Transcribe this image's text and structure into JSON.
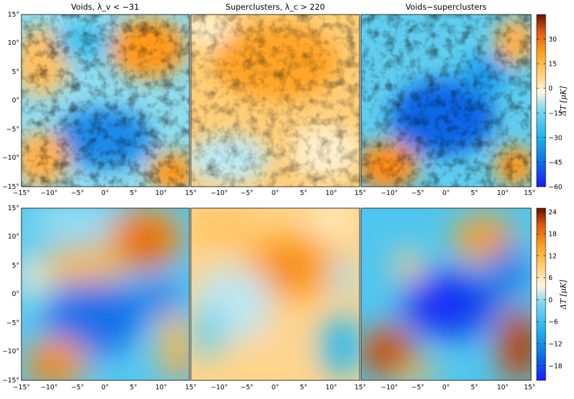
{
  "chart_data": [
    {
      "type": "heatmap",
      "row": "top",
      "panels": [
        {
          "title": "Voids, λ_v < −31",
          "field": "voids"
        },
        {
          "title": "Superclusters, λ_c > 220",
          "field": "superclusters"
        },
        {
          "title": "Voids−superclusters",
          "field": "difference"
        }
      ],
      "x_ticks": [
        "−15°",
        "−10°",
        "−5°",
        "0°",
        "5°",
        "10°",
        "15°"
      ],
      "y_ticks": [
        "15°",
        "10°",
        "5°",
        "0°",
        "−5°",
        "−10°",
        "−15°"
      ],
      "xlim": [
        -15,
        15
      ],
      "ylim": [
        -15,
        15
      ],
      "colorbar": {
        "label": "ΔT [μK]",
        "range": [
          -60,
          45
        ],
        "ticks": [
          "30",
          "15",
          "0",
          "−15",
          "−30",
          "−45",
          "−60"
        ],
        "tick_values": [
          30,
          15,
          0,
          -15,
          -30,
          -45,
          -60
        ]
      }
    },
    {
      "type": "heatmap",
      "row": "bottom",
      "smoothed": true,
      "panels": [
        {
          "title": "",
          "field": "voids"
        },
        {
          "title": "",
          "field": "superclusters"
        },
        {
          "title": "",
          "field": "difference"
        }
      ],
      "x_ticks": [
        "−15°",
        "−10°",
        "−5°",
        "0°",
        "5°",
        "10°",
        "15°"
      ],
      "y_ticks": [
        "15°",
        "10°",
        "5°",
        "0°",
        "−5°",
        "−10°",
        "−15°"
      ],
      "xlim": [
        -15,
        15
      ],
      "ylim": [
        -15,
        15
      ],
      "colorbar": {
        "label": "ΔT [μK]",
        "range": [
          -22,
          25
        ],
        "ticks": [
          "24",
          "18",
          "12",
          "6",
          "0",
          "−6",
          "−12",
          "−18"
        ],
        "tick_values": [
          24,
          18,
          12,
          6,
          0,
          -6,
          -12,
          -18
        ]
      }
    }
  ],
  "colors": {
    "cmap": [
      "#1a1aff",
      "#0a6fe6",
      "#22b8ee",
      "#7fd8f0",
      "#fff6de",
      "#ffcf70",
      "#ffa21a",
      "#e05a10",
      "#6a0f05"
    ]
  }
}
